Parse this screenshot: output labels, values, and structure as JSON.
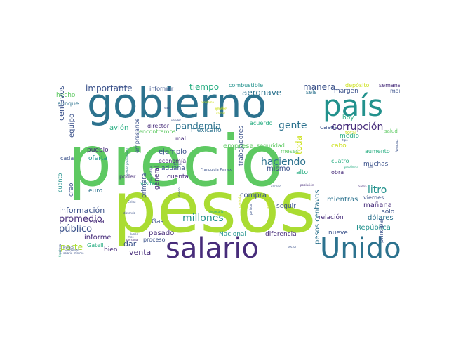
{
  "palette": {
    "dark_purple": "#472c7a",
    "indigo": "#3b528b",
    "blue": "#2c728e",
    "teal": "#21918c",
    "green": "#27ad81",
    "lime": "#5ec962",
    "yellow_green": "#aadc32",
    "yellow": "#cde11d",
    "deep": "#440154"
  },
  "words": [
    {
      "text": "precio",
      "color": "#5ec962"
    },
    {
      "text": "pesos",
      "color": "#aadc32"
    },
    {
      "text": "gobierno",
      "color": "#2c728e"
    },
    {
      "text": "país",
      "color": "#21918c"
    },
    {
      "text": "salario",
      "color": "#472c7a"
    },
    {
      "text": "Unido",
      "color": "#2c728e"
    },
    {
      "text": "importante",
      "color": "#3b528b"
    },
    {
      "text": "tiempo",
      "color": "#27ad81"
    },
    {
      "text": "combustible",
      "color": "#21918c"
    },
    {
      "text": "manera",
      "color": "#3b528b"
    },
    {
      "text": "depósito",
      "color": "#cde11d"
    },
    {
      "text": "semana",
      "color": "#472c7a"
    },
    {
      "text": "seis",
      "color": "#2c728e"
    },
    {
      "text": "margen",
      "color": "#3b528b"
    },
    {
      "text": "mano",
      "color": "#3b528b"
    },
    {
      "text": "hecho",
      "color": "#5ec962"
    },
    {
      "text": "aunque",
      "color": "#2c728e"
    },
    {
      "text": "informar",
      "color": "#3b528b"
    },
    {
      "text": "aeronave",
      "color": "#2c728e"
    },
    {
      "text": "pandemia",
      "color": "#2c728e"
    },
    {
      "text": "gente",
      "color": "#2c728e"
    },
    {
      "text": "corrupción",
      "color": "#472c7a"
    },
    {
      "text": "centavos",
      "color": "#3b528b"
    },
    {
      "text": "avión",
      "color": "#27ad81"
    },
    {
      "text": "director",
      "color": "#472c7a"
    },
    {
      "text": "mexicano",
      "color": "#2c728e"
    },
    {
      "text": "acuerdo",
      "color": "#27ad81"
    },
    {
      "text": "casos",
      "color": "#3b528b"
    },
    {
      "text": "hoy",
      "color": "#27ad81"
    },
    {
      "text": "encontramos",
      "color": "#5ec962"
    },
    {
      "text": "total",
      "color": "#cde11d"
    },
    {
      "text": "salud",
      "color": "#5ec962"
    },
    {
      "text": "equipo",
      "color": "#3b528b"
    },
    {
      "text": "empresarios",
      "color": "#3b528b"
    },
    {
      "text": "mal",
      "color": "#472c7a"
    },
    {
      "text": "ejemplo",
      "color": "#3b528b"
    },
    {
      "text": "economía",
      "color": "#472c7a"
    },
    {
      "text": "aduana",
      "color": "#3b528b"
    },
    {
      "text": "trabajadores",
      "color": "#3b528b"
    },
    {
      "text": "empresa",
      "color": "#5ec962"
    },
    {
      "text": "haciendo",
      "color": "#2c728e"
    },
    {
      "text": "mismo",
      "color": "#3b528b"
    },
    {
      "text": "seguridad",
      "color": "#5ec962"
    },
    {
      "text": "meses",
      "color": "#5ec962"
    },
    {
      "text": "toda",
      "color": "#cde11d"
    },
    {
      "text": "cabo",
      "color": "#cde11d"
    },
    {
      "text": "medio",
      "color": "#27ad81"
    },
    {
      "text": "obra",
      "color": "#472c7a"
    },
    {
      "text": "aumento",
      "color": "#27ad81"
    },
    {
      "text": "muchas",
      "color": "#3b528b"
    },
    {
      "text": "cuatro",
      "color": "#27ad81"
    },
    {
      "text": "pueblo",
      "color": "#472c7a"
    },
    {
      "text": "oferta",
      "color": "#21918c"
    },
    {
      "text": "cada",
      "color": "#3b528b"
    },
    {
      "text": "poder",
      "color": "#472c7a"
    },
    {
      "text": "general",
      "color": "#472c7a"
    },
    {
      "text": "cuenta",
      "color": "#472c7a"
    },
    {
      "text": "alto",
      "color": "#27ad81"
    },
    {
      "text": "Gas",
      "color": "#3b528b"
    },
    {
      "text": "Franquicia Pemex",
      "color": "#3b528b"
    },
    {
      "text": "cuanto",
      "color": "#21918c"
    },
    {
      "text": "euro",
      "color": "#2c728e"
    },
    {
      "text": "visita",
      "color": "#27ad81"
    },
    {
      "text": "creo",
      "color": "#3b528b"
    },
    {
      "text": "litro",
      "color": "#21918c"
    },
    {
      "text": "compra",
      "color": "#3b528b"
    },
    {
      "text": "primera",
      "color": "#3b528b"
    },
    {
      "text": "información",
      "color": "#3b528b"
    },
    {
      "text": "promedio",
      "color": "#472c7a"
    },
    {
      "text": "millones",
      "color": "#21918c"
    },
    {
      "text": "seguir",
      "color": "#3b528b"
    },
    {
      "text": "mientras",
      "color": "#2c728e"
    },
    {
      "text": "mañana",
      "color": "#472c7a"
    },
    {
      "text": "viernes",
      "color": "#3b528b"
    },
    {
      "text": "dólares",
      "color": "#2c728e"
    },
    {
      "text": "sólo",
      "color": "#3b528b"
    },
    {
      "text": "relación",
      "color": "#472c7a"
    },
    {
      "text": "República",
      "color": "#21918c"
    },
    {
      "text": "público",
      "color": "#3b528b"
    },
    {
      "text": "pasado",
      "color": "#472c7a"
    },
    {
      "text": "diferencia",
      "color": "#472c7a"
    },
    {
      "text": "nueve",
      "color": "#3b528b"
    },
    {
      "text": "principal",
      "color": "#3b528b"
    },
    {
      "text": "informe",
      "color": "#472c7a"
    },
    {
      "text": "cosa",
      "color": "#472c7a"
    },
    {
      "text": "Nacional",
      "color": "#21918c"
    },
    {
      "text": "pesos centavos",
      "color": "#2c728e"
    },
    {
      "text": "proceso",
      "color": "#3b528b"
    },
    {
      "text": "parte",
      "color": "#aadc32"
    },
    {
      "text": "dar",
      "color": "#3b528b"
    },
    {
      "text": "venta",
      "color": "#472c7a"
    },
    {
      "text": "Gatell",
      "color": "#27ad81"
    },
    {
      "text": "bien",
      "color": "#472c7a"
    },
    {
      "text": "dispara",
      "color": "#3b528b"
    },
    {
      "text": "valor",
      "color": "#3b528b"
    },
    {
      "text": "vender",
      "color": "#3b528b"
    },
    {
      "text": "problema",
      "color": "#cde11d"
    },
    {
      "text": "gasolina",
      "color": "#cde11d"
    },
    {
      "text": "precita",
      "color": "#cde11d"
    },
    {
      "text": "vamos",
      "color": "#cde11d"
    },
    {
      "text": "tipo",
      "color": "#3b528b"
    },
    {
      "text": "gasolinera",
      "color": "#27ad81"
    },
    {
      "text": "julio",
      "color": "#3b528b"
    },
    {
      "text": "Veracruz",
      "color": "#3b528b"
    },
    {
      "text": "Nuevo",
      "color": "#3b528b"
    },
    {
      "text": "estado presidencial",
      "color": "#2c728e"
    },
    {
      "text": "sin trabajo",
      "color": "#3b528b"
    },
    {
      "text": "cachito",
      "color": "#3b528b"
    },
    {
      "text": "población",
      "color": "#472c7a"
    },
    {
      "text": "buena",
      "color": "#472c7a"
    },
    {
      "text": "Secretaría",
      "color": "#27ad81"
    },
    {
      "text": "China",
      "color": "#3b528b"
    },
    {
      "text": "diciendo",
      "color": "#3b528b"
    },
    {
      "text": "dando",
      "color": "#3b528b"
    },
    {
      "text": "periodo",
      "color": "#3b528b"
    },
    {
      "text": "persona",
      "color": "#472c7a"
    },
    {
      "text": "mes",
      "color": "#3b528b"
    },
    {
      "text": "lunes",
      "color": "#3b528b"
    },
    {
      "text": "sector",
      "color": "#3b528b"
    },
    {
      "text": "salario mínimo",
      "color": "#3b528b"
    },
    {
      "text": "vendiendo",
      "color": "#3b528b"
    },
    {
      "text": "Profeco",
      "color": "#3b528b"
    },
    {
      "text": "fiscal",
      "color": "#27ad81"
    },
    {
      "text": "general",
      "color": "#3b528b"
    },
    {
      "text": "comisión",
      "color": "#cde11d"
    },
    {
      "text": "noviembre",
      "color": "#cde11d"
    }
  ]
}
